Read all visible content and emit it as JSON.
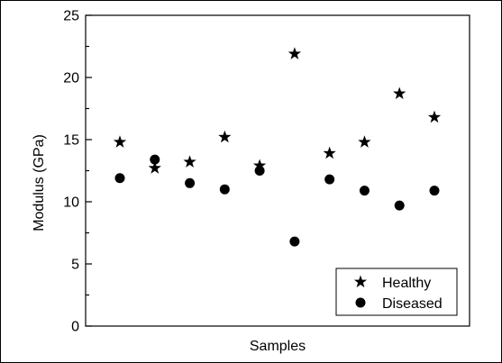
{
  "chart_data": {
    "type": "scatter",
    "title": "",
    "xlabel": "Samples",
    "ylabel": "Modulus (GPa)",
    "ylim": [
      0,
      25
    ],
    "yticks": [
      "0",
      "5",
      "10",
      "15",
      "20",
      "25"
    ],
    "x": [
      1,
      2,
      3,
      4,
      5,
      6,
      7,
      8,
      9,
      10
    ],
    "grid": false,
    "legend_position": "bottom-right",
    "series": [
      {
        "name": "Healthy",
        "marker": "star",
        "color": "#000000",
        "values": [
          14.8,
          12.7,
          13.2,
          15.2,
          12.9,
          21.9,
          13.9,
          14.8,
          18.7,
          16.8
        ]
      },
      {
        "name": "Diseased",
        "marker": "circle",
        "color": "#000000",
        "values": [
          11.9,
          13.4,
          11.5,
          11.0,
          12.5,
          6.8,
          11.8,
          10.9,
          9.7,
          10.9
        ]
      }
    ]
  }
}
